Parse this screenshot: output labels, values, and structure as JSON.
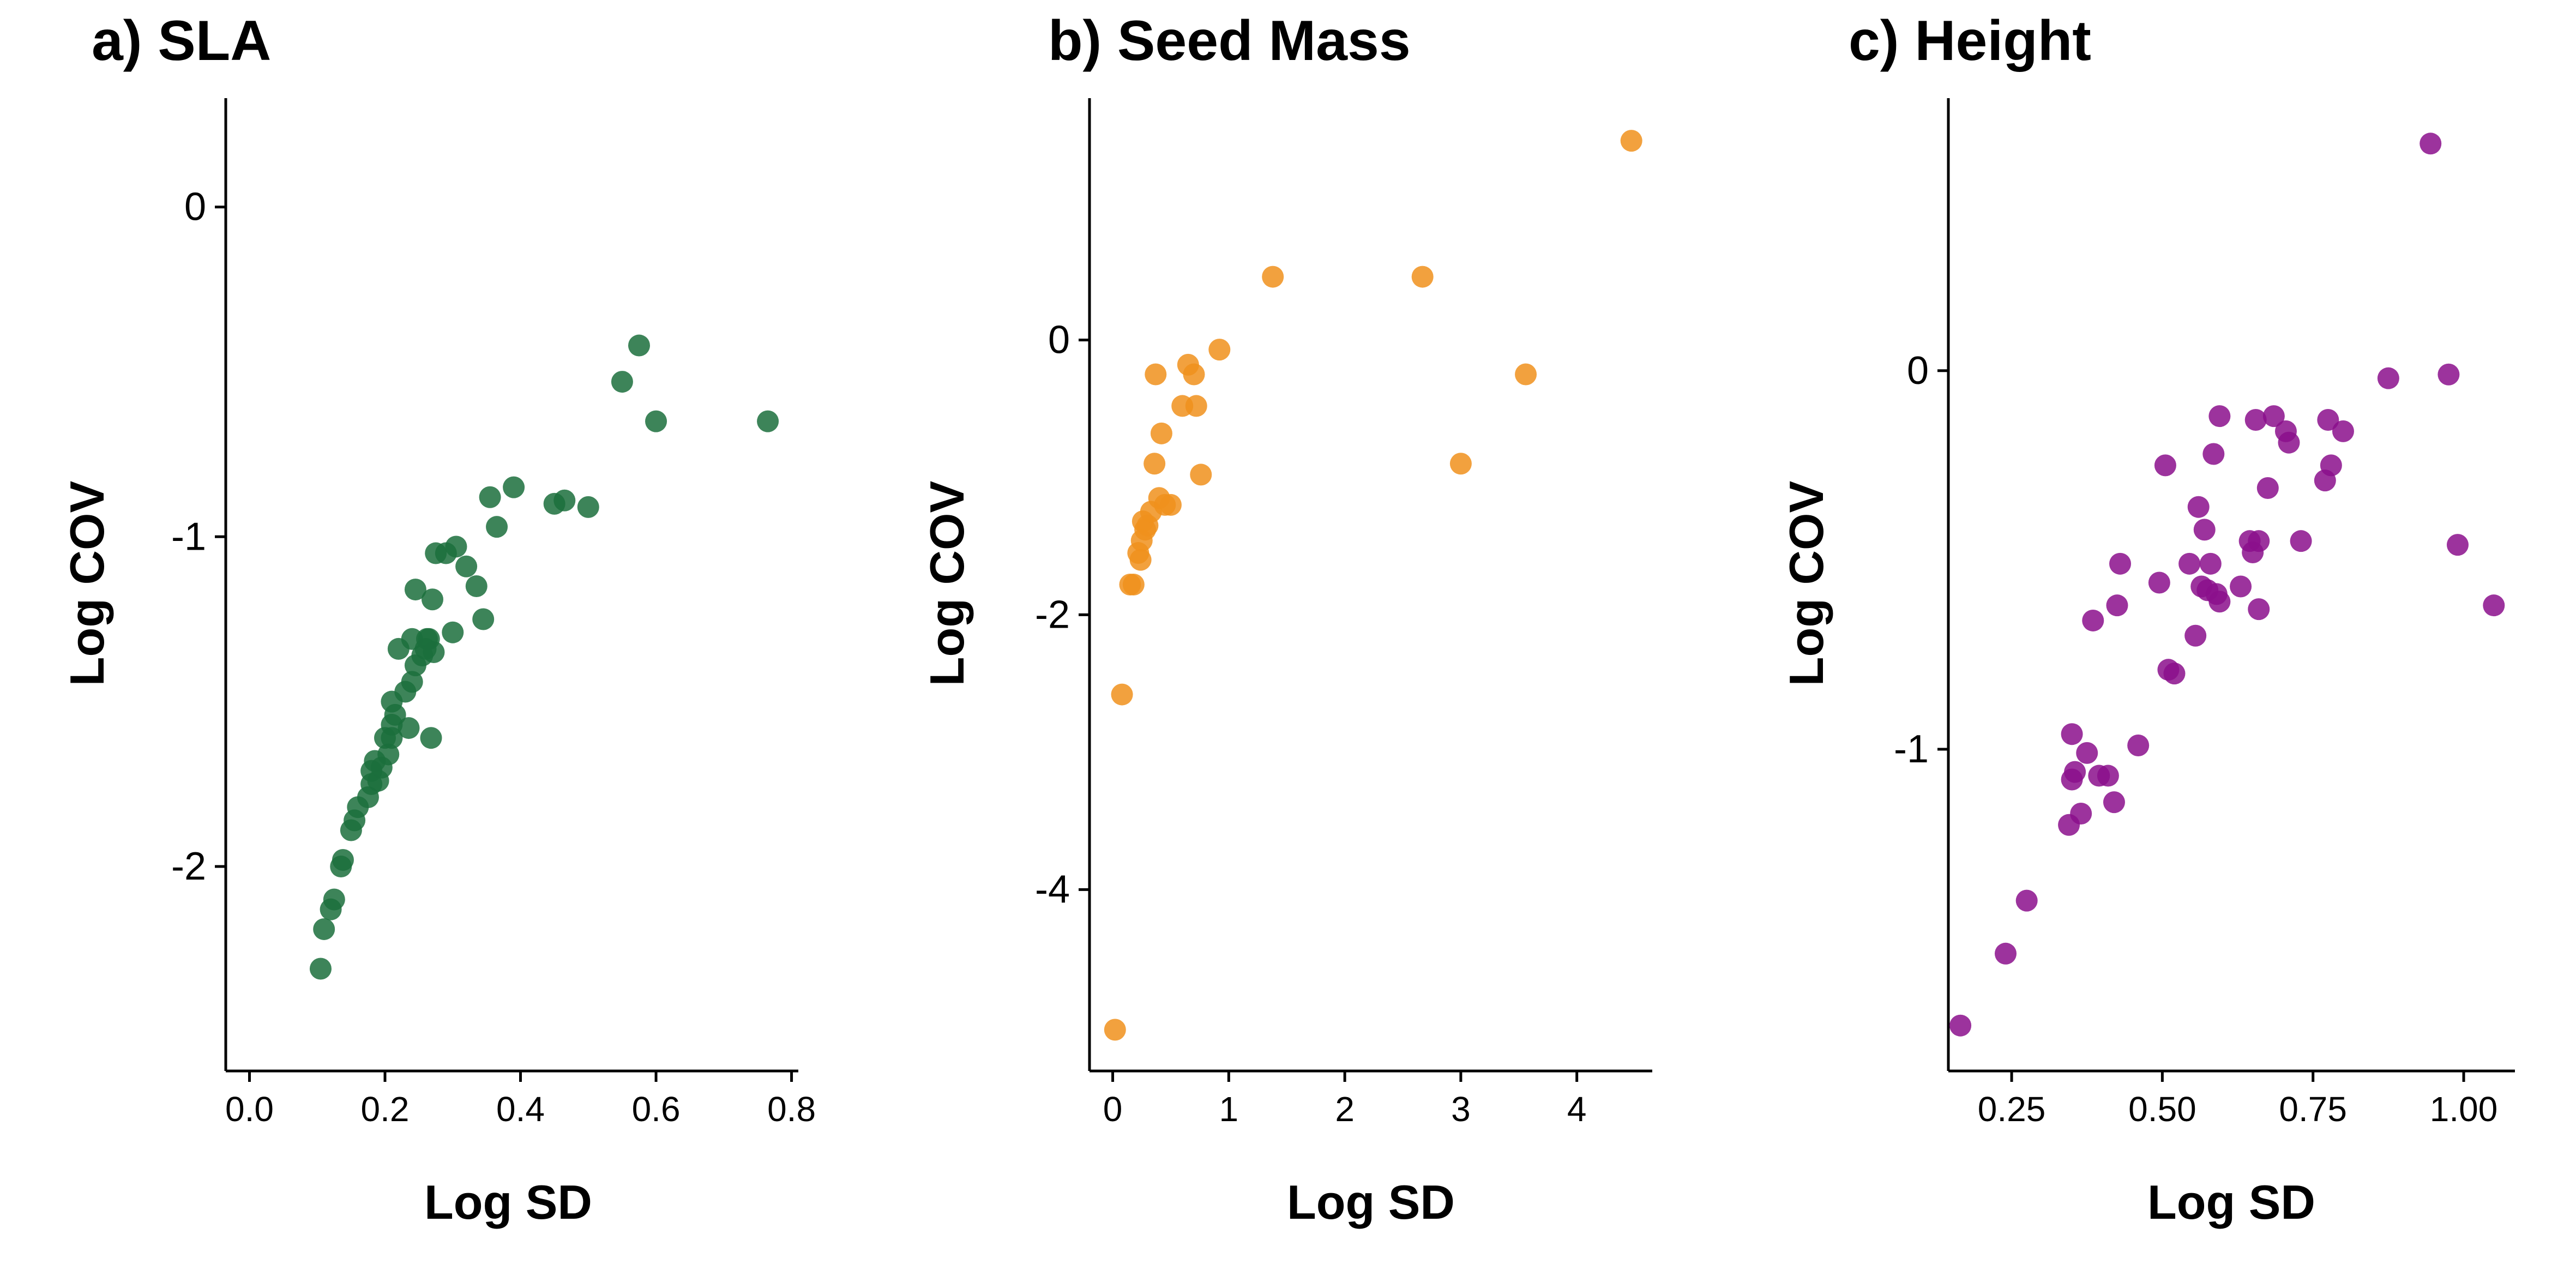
{
  "chart_data": [
    {
      "type": "scatter",
      "title": "a) SLA",
      "xlabel": "Log SD",
      "ylabel": "Log COV",
      "xlim": [
        -0.035,
        0.81
      ],
      "ylim": [
        -2.62,
        0.33
      ],
      "xticks": [
        0.0,
        0.2,
        0.4,
        0.6,
        0.8
      ],
      "xtick_labels": [
        "0.0",
        "0.2",
        "0.4",
        "0.6",
        "0.8"
      ],
      "yticks": [
        0,
        -1,
        -2
      ],
      "ytick_labels": [
        "0",
        "-1",
        "-2"
      ],
      "grid": false,
      "color": "#1b6e3c",
      "points": [
        [
          0.105,
          -2.31
        ],
        [
          0.11,
          -2.19
        ],
        [
          0.12,
          -2.13
        ],
        [
          0.125,
          -2.1
        ],
        [
          0.135,
          -2.0
        ],
        [
          0.138,
          -1.98
        ],
        [
          0.15,
          -1.89
        ],
        [
          0.155,
          -1.86
        ],
        [
          0.16,
          -1.82
        ],
        [
          0.175,
          -1.79
        ],
        [
          0.18,
          -1.75
        ],
        [
          0.18,
          -1.71
        ],
        [
          0.185,
          -1.68
        ],
        [
          0.19,
          -1.74
        ],
        [
          0.195,
          -1.7
        ],
        [
          0.2,
          -1.61
        ],
        [
          0.205,
          -1.66
        ],
        [
          0.21,
          -1.61
        ],
        [
          0.21,
          -1.57
        ],
        [
          0.215,
          -1.54
        ],
        [
          0.21,
          -1.5
        ],
        [
          0.22,
          -1.34
        ],
        [
          0.23,
          -1.47
        ],
        [
          0.235,
          -1.58
        ],
        [
          0.24,
          -1.44
        ],
        [
          0.24,
          -1.31
        ],
        [
          0.245,
          -1.39
        ],
        [
          0.245,
          -1.16
        ],
        [
          0.255,
          -1.36
        ],
        [
          0.26,
          -1.34
        ],
        [
          0.262,
          -1.31
        ],
        [
          0.265,
          -1.31
        ],
        [
          0.268,
          -1.61
        ],
        [
          0.27,
          -1.19
        ],
        [
          0.272,
          -1.35
        ],
        [
          0.275,
          -1.05
        ],
        [
          0.29,
          -1.05
        ],
        [
          0.3,
          -1.29
        ],
        [
          0.305,
          -1.03
        ],
        [
          0.32,
          -1.09
        ],
        [
          0.335,
          -1.15
        ],
        [
          0.345,
          -1.25
        ],
        [
          0.355,
          -0.88
        ],
        [
          0.365,
          -0.97
        ],
        [
          0.39,
          -0.85
        ],
        [
          0.45,
          -0.9
        ],
        [
          0.465,
          -0.89
        ],
        [
          0.5,
          -0.91
        ],
        [
          0.55,
          -0.53
        ],
        [
          0.575,
          -0.42
        ],
        [
          0.6,
          -0.65
        ],
        [
          0.765,
          -0.65
        ]
      ]
    },
    {
      "type": "scatter",
      "title": "b) Seed Mass",
      "xlabel": "Log SD",
      "ylabel": "Log COV",
      "xlim": [
        -0.2,
        4.65
      ],
      "ylim": [
        -5.32,
        1.76
      ],
      "xticks": [
        0,
        1,
        2,
        3,
        4
      ],
      "xtick_labels": [
        "0",
        "1",
        "2",
        "3",
        "4"
      ],
      "yticks": [
        0,
        -2,
        -4
      ],
      "ytick_labels": [
        "0",
        "-2",
        "-4"
      ],
      "grid": false,
      "color": "#f0901c",
      "points": [
        [
          0.02,
          -5.02
        ],
        [
          0.08,
          -2.58
        ],
        [
          0.15,
          -1.78
        ],
        [
          0.18,
          -1.78
        ],
        [
          0.22,
          -1.55
        ],
        [
          0.24,
          -1.6
        ],
        [
          0.25,
          -1.46
        ],
        [
          0.26,
          -1.32
        ],
        [
          0.28,
          -1.38
        ],
        [
          0.3,
          -1.35
        ],
        [
          0.33,
          -1.25
        ],
        [
          0.36,
          -0.9
        ],
        [
          0.37,
          -0.25
        ],
        [
          0.4,
          -1.15
        ],
        [
          0.42,
          -0.68
        ],
        [
          0.45,
          -1.2
        ],
        [
          0.5,
          -1.2
        ],
        [
          0.6,
          -0.48
        ],
        [
          0.65,
          -0.18
        ],
        [
          0.7,
          -0.25
        ],
        [
          0.72,
          -0.48
        ],
        [
          0.76,
          -0.98
        ],
        [
          0.92,
          -0.07
        ],
        [
          1.38,
          0.46
        ],
        [
          2.67,
          0.46
        ],
        [
          3.0,
          -0.9
        ],
        [
          3.56,
          -0.25
        ],
        [
          4.47,
          1.45
        ]
      ]
    },
    {
      "type": "scatter",
      "title": "c) Height",
      "xlabel": "Log SD",
      "ylabel": "Log COV",
      "xlim": [
        0.145,
        1.085
      ],
      "ylim": [
        -1.85,
        0.72
      ],
      "xticks": [
        0.25,
        0.5,
        0.75,
        1.0
      ],
      "xtick_labels": [
        "0.25",
        "0.50",
        "0.75",
        "1.00"
      ],
      "yticks": [
        0,
        -1
      ],
      "ytick_labels": [
        "0",
        "-1"
      ],
      "grid": false,
      "color": "#8b0f8c",
      "points": [
        [
          0.165,
          -1.73
        ],
        [
          0.24,
          -1.54
        ],
        [
          0.275,
          -1.4
        ],
        [
          0.345,
          -1.2
        ],
        [
          0.35,
          -1.08
        ],
        [
          0.35,
          -0.96
        ],
        [
          0.355,
          -1.06
        ],
        [
          0.365,
          -1.17
        ],
        [
          0.375,
          -1.01
        ],
        [
          0.385,
          -0.66
        ],
        [
          0.395,
          -1.07
        ],
        [
          0.41,
          -1.07
        ],
        [
          0.42,
          -1.14
        ],
        [
          0.425,
          -0.62
        ],
        [
          0.43,
          -0.51
        ],
        [
          0.46,
          -0.99
        ],
        [
          0.495,
          -0.56
        ],
        [
          0.505,
          -0.25
        ],
        [
          0.51,
          -0.79
        ],
        [
          0.52,
          -0.8
        ],
        [
          0.545,
          -0.51
        ],
        [
          0.555,
          -0.7
        ],
        [
          0.56,
          -0.36
        ],
        [
          0.565,
          -0.57
        ],
        [
          0.57,
          -0.42
        ],
        [
          0.575,
          -0.58
        ],
        [
          0.58,
          -0.51
        ],
        [
          0.585,
          -0.22
        ],
        [
          0.59,
          -0.59
        ],
        [
          0.595,
          -0.61
        ],
        [
          0.595,
          -0.12
        ],
        [
          0.63,
          -0.57
        ],
        [
          0.645,
          -0.45
        ],
        [
          0.65,
          -0.48
        ],
        [
          0.655,
          -0.13
        ],
        [
          0.66,
          -0.63
        ],
        [
          0.66,
          -0.45
        ],
        [
          0.675,
          -0.31
        ],
        [
          0.685,
          -0.12
        ],
        [
          0.705,
          -0.16
        ],
        [
          0.71,
          -0.19
        ],
        [
          0.73,
          -0.45
        ],
        [
          0.77,
          -0.29
        ],
        [
          0.775,
          -0.13
        ],
        [
          0.78,
          -0.25
        ],
        [
          0.8,
          -0.16
        ],
        [
          0.875,
          -0.02
        ],
        [
          0.945,
          0.6
        ],
        [
          0.975,
          -0.01
        ],
        [
          0.99,
          -0.46
        ],
        [
          1.05,
          -0.62
        ]
      ]
    }
  ]
}
